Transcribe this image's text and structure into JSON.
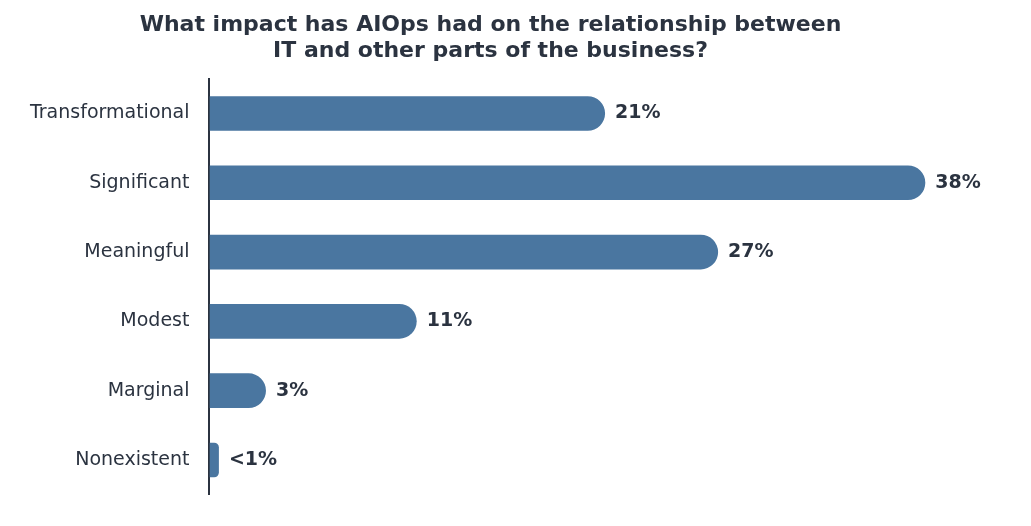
{
  "chart_data": {
    "type": "bar",
    "orientation": "horizontal",
    "title": "What impact has AIOps had on the relationship between\nIT and other parts of the business?",
    "categories": [
      "Transformational",
      "Significant",
      "Meaningful",
      "Modest",
      "Marginal",
      "Nonexistent"
    ],
    "values": [
      21,
      38,
      27,
      11,
      3,
      0.5
    ],
    "value_labels": [
      "21%",
      "38%",
      "27%",
      "11%",
      "3%",
      "<1%"
    ],
    "color": "#4a76a0",
    "grid": false,
    "legend": false
  }
}
